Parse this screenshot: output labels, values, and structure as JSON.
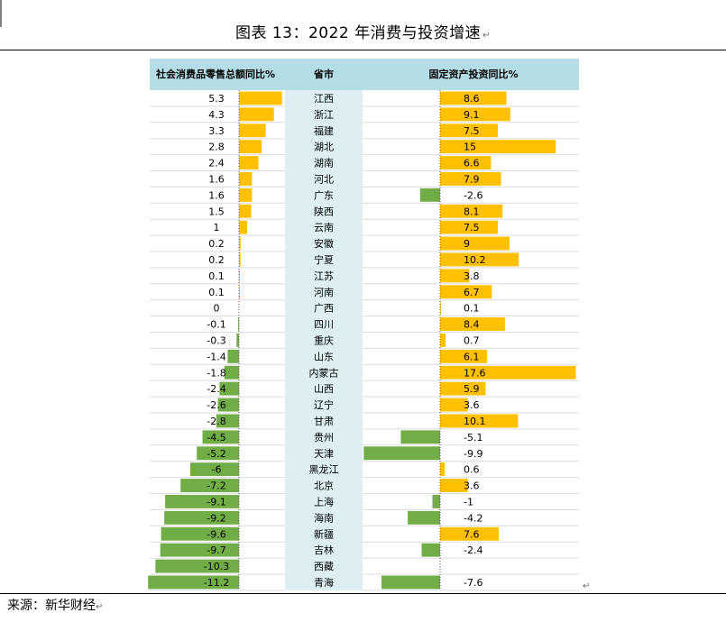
{
  "title": "图表 13：2022 年消费与投资增速",
  "source": "来源：新华财经",
  "chart_data": {
    "type": "bar",
    "headers": {
      "retail": "社会消费品零售总额同比%",
      "province": "省市",
      "investment": "固定资产投资同比%"
    },
    "categories": [
      "江西",
      "浙江",
      "福建",
      "湖北",
      "湖南",
      "河北",
      "广东",
      "陕西",
      "云南",
      "安徽",
      "宁夏",
      "江苏",
      "河南",
      "广西",
      "四川",
      "重庆",
      "山东",
      "内蒙古",
      "山西",
      "辽宁",
      "甘肃",
      "贵州",
      "天津",
      "黑龙江",
      "北京",
      "上海",
      "海南",
      "新疆",
      "吉林",
      "西藏",
      "青海"
    ],
    "series": [
      {
        "name": "社会消费品零售总额同比%",
        "values": [
          5.3,
          4.3,
          3.3,
          2.8,
          2.4,
          1.6,
          1.6,
          1.5,
          1,
          0.2,
          0.2,
          0.1,
          0.1,
          0,
          -0.1,
          -0.3,
          -1.4,
          -1.8,
          -2.4,
          -2.6,
          -2.8,
          -4.5,
          -5.2,
          -6,
          -7.2,
          -9.1,
          -9.2,
          -9.6,
          -9.7,
          -10.3,
          -11.2
        ]
      },
      {
        "name": "固定资产投资同比%",
        "values": [
          8.6,
          9.1,
          7.5,
          15,
          6.6,
          7.9,
          -2.6,
          8.1,
          7.5,
          9,
          10.2,
          3.8,
          6.7,
          0.1,
          8.4,
          0.7,
          6.1,
          17.6,
          5.9,
          3.6,
          10.1,
          -5.1,
          -9.9,
          0.6,
          3.6,
          -1,
          -4.2,
          7.6,
          -2.4,
          null,
          -7.6
        ]
      }
    ],
    "colors": {
      "positive": "#FFC000",
      "negative": "#70AD47",
      "header_bg": "#B4DDE6",
      "province_bg": "#DDEFF3"
    }
  }
}
